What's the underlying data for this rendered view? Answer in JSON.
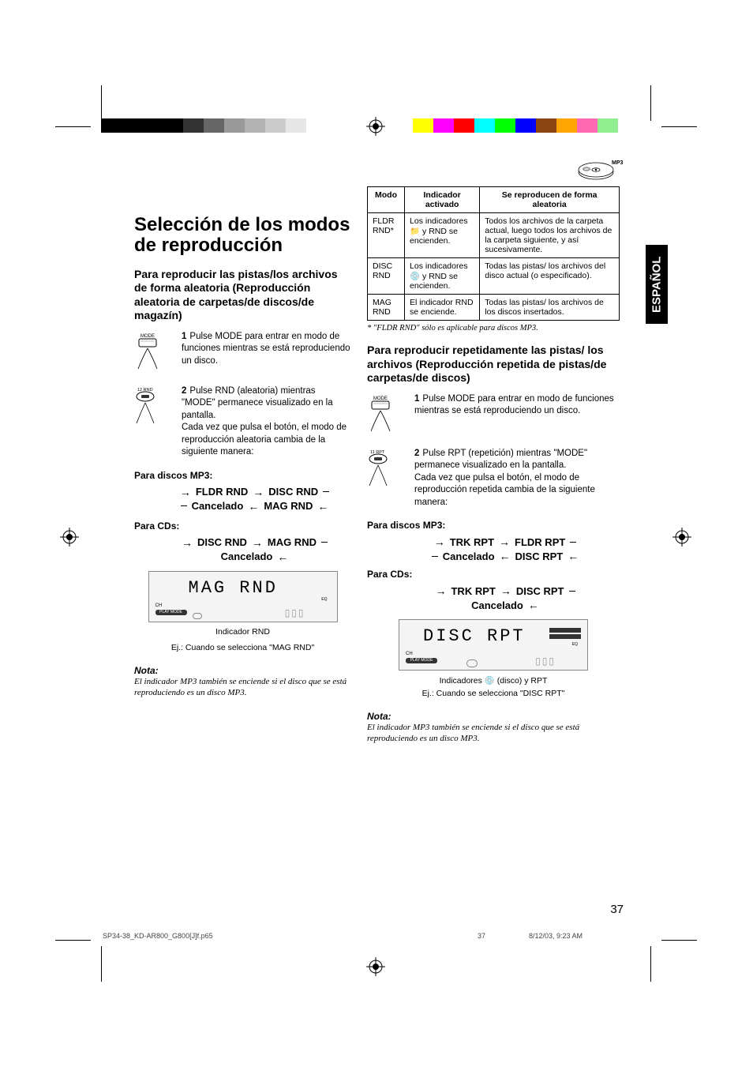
{
  "colorBars": {
    "left": [
      "#000000",
      "#000000",
      "#000000",
      "#000000",
      "#333333",
      "#666666",
      "#999999",
      "#b3b3b3",
      "#cccccc",
      "#e6e6e6"
    ],
    "right": [
      "#ffff00",
      "#ff00ff",
      "#ff0000",
      "#00ffff",
      "#00ff00",
      "#0000ff",
      "#8b4513",
      "#ffa500",
      "#ff69b4",
      "#90ee90"
    ]
  },
  "sideTab": "ESPAÑOL",
  "mainTitle": "Selección de los modos de reproducción",
  "left": {
    "sectionHead": "Para reproducir las pistas/los archivos de forma aleatoria (Reproducción aleatoria de carpetas/de discos/de magazín)",
    "step1": {
      "num": "1",
      "text": "Pulse MODE para entrar en modo de funciones mientras se está reproduciendo un disco."
    },
    "step2": {
      "num": "2",
      "text": "Pulse RND (aleatoria) mientras \"MODE\" permanece visualizado en la pantalla.",
      "text2": "Cada vez que pulsa el botón, el modo de reproducción aleatoria cambia de la siguiente manera:"
    },
    "mp3Label": "Para discos MP3:",
    "mp3Flow": {
      "row1": [
        "FLDR RND",
        "DISC RND"
      ],
      "row2": [
        "Cancelado",
        "MAG RND"
      ]
    },
    "cdLabel": "Para CDs:",
    "cdFlow": {
      "row1": [
        "DISC RND",
        "MAG RND"
      ],
      "row2": [
        "Cancelado"
      ]
    },
    "lcdText": "MAG RND",
    "lcdCaption1": "Indicador RND",
    "lcdCaption2": "Ej.: Cuando se selecciona \"MAG RND\"",
    "noteLabel": "Nota:",
    "noteText": "El indicador MP3 también se enciende si el disco que se está reproduciendo es un disco MP3."
  },
  "right": {
    "table": {
      "headers": [
        "Modo",
        "Indicador activado",
        "Se reproducen de forma aleatoria"
      ],
      "rows": [
        [
          "FLDR RND*",
          "Los indicadores 📁 y RND se encienden.",
          "Todos los archivos de la carpeta actual, luego todos los archivos de la carpeta siguiente, y así sucesivamente."
        ],
        [
          "DISC RND",
          "Los indicadores 💿 y RND se encienden.",
          "Todas las pistas/ los archivos del disco actual (o especificado)."
        ],
        [
          "MAG RND",
          "El indicador RND se enciende.",
          "Todas las pistas/ los archivos de los discos insertados."
        ]
      ]
    },
    "footnote": "* \"FLDR RND\" sólo es aplicable para discos MP3.",
    "sectionHead": "Para reproducir repetidamente las pistas/ los archivos (Reproducción repetida de pistas/de carpetas/de discos)",
    "step1": {
      "num": "1",
      "text": "Pulse MODE para entrar en modo de funciones mientras se está reproduciendo un disco."
    },
    "step2": {
      "num": "2",
      "text": "Pulse RPT (repetición) mientras \"MODE\" permanece visualizado en la pantalla.",
      "text2": "Cada vez que pulsa el botón, el modo de reproducción repetida cambia de la siguiente manera:"
    },
    "mp3Label": "Para discos MP3:",
    "mp3Flow": {
      "row1": [
        "TRK RPT",
        "FLDR RPT"
      ],
      "row2": [
        "Cancelado",
        "DISC RPT"
      ]
    },
    "cdLabel": "Para CDs:",
    "cdFlow": {
      "row1": [
        "TRK RPT",
        "DISC RPT"
      ],
      "row2": [
        "Cancelado"
      ]
    },
    "lcdText": "DISC RPT",
    "lcdCaption1": "Indicadores 💿 (disco) y RPT",
    "lcdCaption2": "Ej.: Cuando se selecciona \"DISC RPT\"",
    "noteLabel": "Nota:",
    "noteText": "El indicador MP3 también se enciende si el disco que se está reproduciendo es un disco MP3."
  },
  "pageNum": "37",
  "footer": {
    "file": "SP34-38_KD-AR800_G800[J]f.p65",
    "page": "37",
    "date": "8/12/03, 9:23 AM"
  },
  "icons": {
    "modeLabel": "MODE",
    "rndBtn": "12 RND",
    "rptBtn": "11 RPT",
    "mp3Badge": "MP3"
  }
}
